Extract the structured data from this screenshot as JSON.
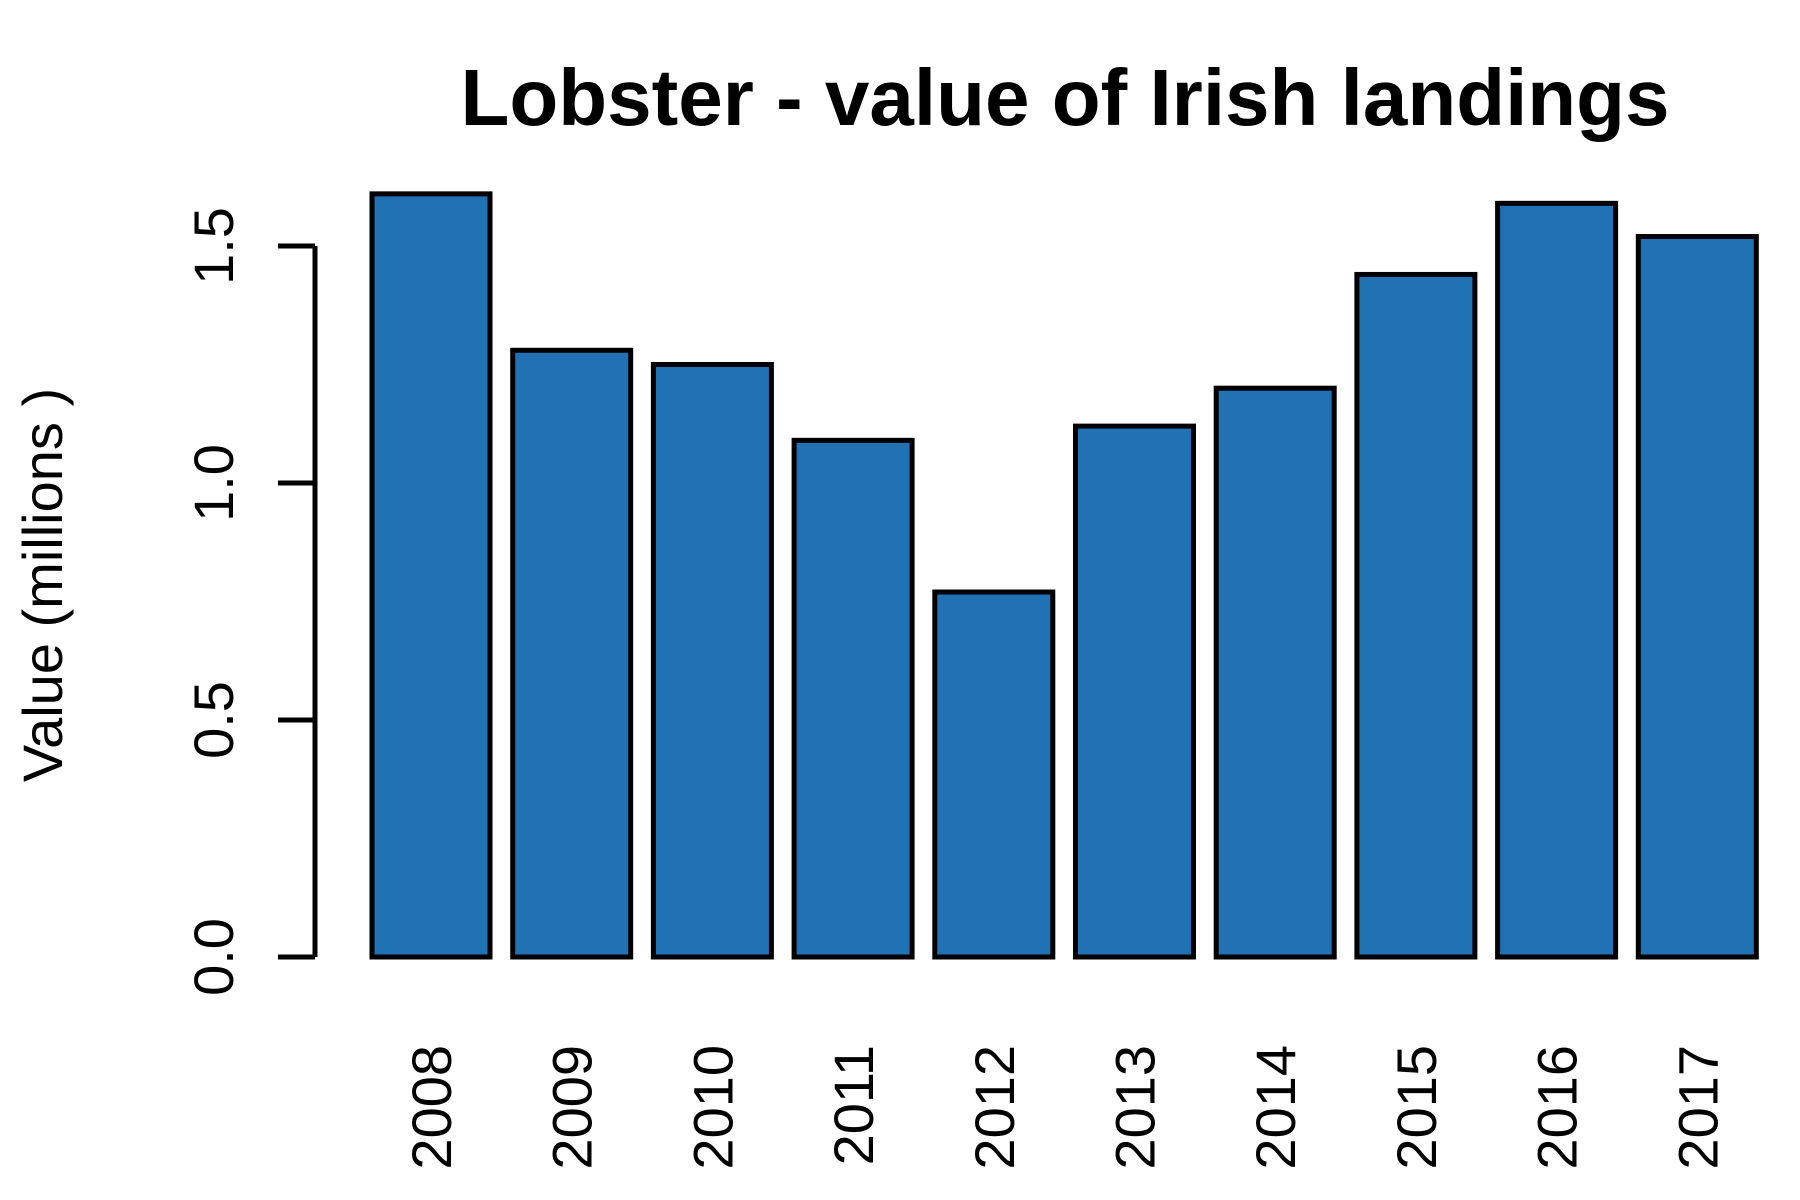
{
  "chart_data": {
    "type": "bar",
    "title": "Lobster - value of Irish landings",
    "xlabel": "",
    "ylabel": "Value (millions )",
    "categories": [
      "2008",
      "2009",
      "2010",
      "2011",
      "2012",
      "2013",
      "2014",
      "2015",
      "2016",
      "2017"
    ],
    "values": [
      1.61,
      1.28,
      1.25,
      1.09,
      0.77,
      1.12,
      1.2,
      1.44,
      1.59,
      1.52
    ],
    "ylim": [
      0,
      1.5
    ],
    "yticks": [
      "0.0",
      "0.5",
      "1.0",
      "1.5"
    ],
    "grid": false,
    "bar_color": "#2171b5",
    "outline_color": "#000000"
  }
}
